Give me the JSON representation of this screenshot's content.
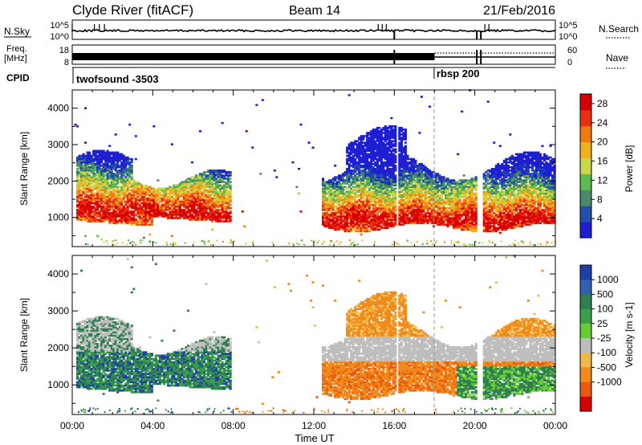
{
  "header": {
    "station": "Clyde River (fitACF)",
    "beam": "Beam 14",
    "date": "21/Feb/2016"
  },
  "strips": {
    "nsky": {
      "label": "N.Sky",
      "ticks": [
        "10^5",
        "10^0"
      ]
    },
    "nsearch": {
      "label": "N.Search",
      "ticks": [
        "10^5",
        "10^0"
      ]
    },
    "freq": {
      "label_1": "Freq.",
      "label_2": "[MHz]",
      "ticks": [
        "18",
        "8"
      ]
    },
    "nave": {
      "label": "Nave",
      "ticks": [
        "60",
        "0"
      ]
    },
    "cpid": {
      "label": "CPID",
      "segments": [
        {
          "name": "twofsound -3503",
          "start_hour": 0
        },
        {
          "name": "rbsp 200",
          "start_hour": 18
        }
      ]
    }
  },
  "colors": {
    "power": [
      "#1e1ed2",
      "#2050a8",
      "#4a8a6a",
      "#5cbc4c",
      "#c9d84a",
      "#f0b020",
      "#f07a10",
      "#e83010",
      "#d60000"
    ],
    "velocity": [
      "#1f3fa8",
      "#3060b0",
      "#2e7e50",
      "#3aa048",
      "#66cc33",
      "#bebebe",
      "#f0b84a",
      "#f08a1a",
      "#e85a10",
      "#d60000"
    ]
  },
  "chart_data": [
    {
      "type": "heatmap",
      "title": "",
      "quantity": "Power",
      "ylabel": "Slant Range [km]",
      "xlabel": "",
      "x_ticks": [],
      "y_ticks": [
        "1000",
        "2000",
        "3000",
        "4000"
      ],
      "xlim": [
        0,
        24
      ],
      "ylim": [
        200,
        4500
      ],
      "colorbar": {
        "label": "Power [dB]",
        "ticks": [
          "4",
          "8",
          "12",
          "16",
          "20",
          "24",
          "28"
        ],
        "range": [
          0,
          30
        ]
      },
      "data_windows": [
        {
          "start_hour": 0,
          "end_hour": 8,
          "range_km": [
            600,
            2900
          ],
          "typical_db": 20
        },
        {
          "start_hour": 12.3,
          "end_hour": 24,
          "range_km": [
            500,
            3400
          ],
          "typical_db": 18
        }
      ]
    },
    {
      "type": "heatmap",
      "title": "",
      "quantity": "Velocity",
      "ylabel": "Slant Range [km]",
      "xlabel": "Time UT",
      "x_ticks": [
        "00:00",
        "04:00",
        "08:00",
        "12:00",
        "16:00",
        "20:00",
        "00:00"
      ],
      "y_ticks": [
        "1000",
        "2000",
        "3000",
        "4000"
      ],
      "xlim": [
        0,
        24
      ],
      "ylim": [
        200,
        4500
      ],
      "colorbar": {
        "label": "Velocity [m s-1]",
        "ticks": [
          "1000",
          "500",
          "100",
          "25",
          "-25",
          "-100",
          "-500",
          "-1000"
        ]
      },
      "data_windows": [
        {
          "start_hour": 0,
          "end_hour": 8,
          "range_km": [
            600,
            2900
          ],
          "typical_ms": 200
        },
        {
          "start_hour": 12.3,
          "end_hour": 24,
          "range_km": [
            500,
            3400
          ],
          "typical_ms": -150
        }
      ]
    }
  ]
}
